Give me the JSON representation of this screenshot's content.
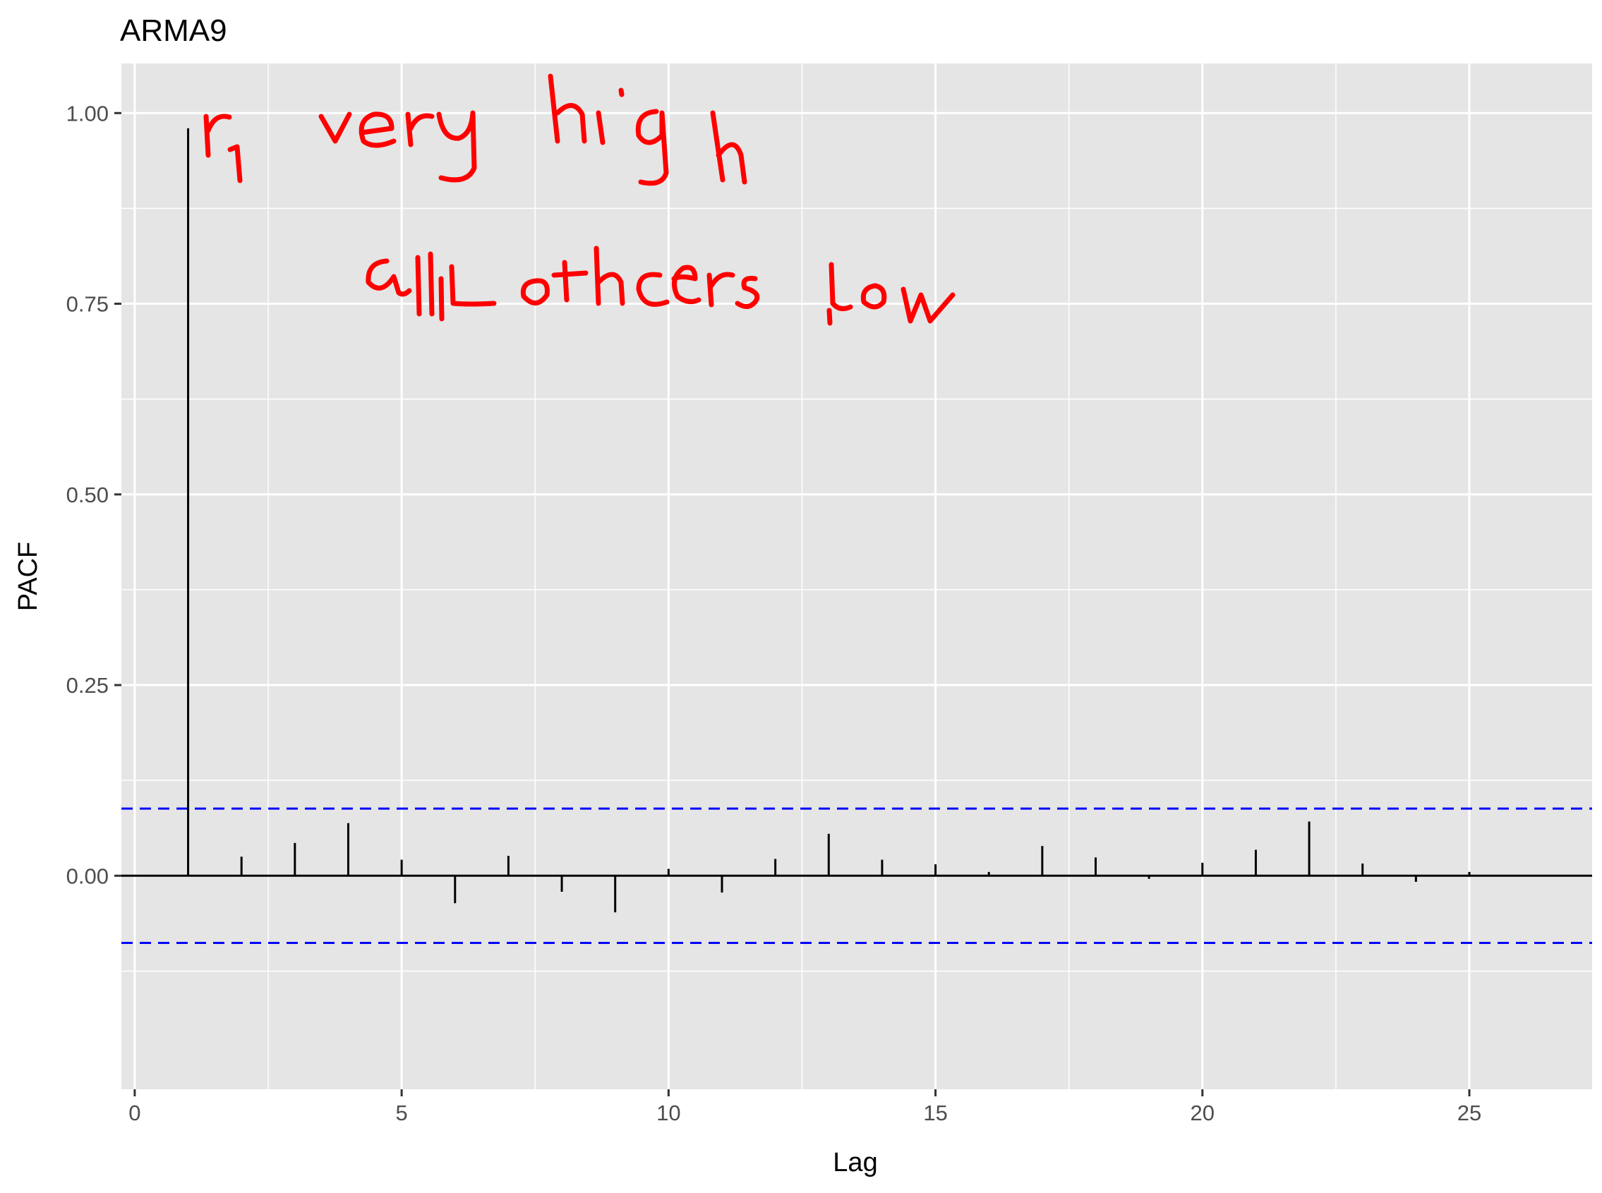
{
  "chart_data": {
    "type": "bar",
    "title": "ARMA9",
    "xlabel": "Lag",
    "ylabel": "PACF",
    "xlim": [
      -0.25,
      27.3
    ],
    "ylim": [
      -0.28,
      1.065
    ],
    "x_ticks": [
      0,
      5,
      10,
      15,
      20,
      25
    ],
    "x_tick_labels": [
      "0",
      "5",
      "10",
      "15",
      "20",
      "25"
    ],
    "y_ticks": [
      0,
      0.25,
      0.5,
      0.75,
      1.0
    ],
    "y_tick_labels": [
      "0.00",
      "0.25",
      "0.50",
      "0.75",
      "1.00"
    ],
    "grid": true,
    "series": [
      {
        "x": [
          1,
          2,
          3,
          4,
          5,
          6,
          7,
          8,
          9,
          10,
          11,
          12,
          13,
          14,
          15,
          16,
          17,
          18,
          19,
          20,
          21,
          22,
          23,
          24,
          25
        ],
        "values": [
          0.98,
          0.025,
          0.043,
          0.069,
          0.021,
          -0.036,
          0.026,
          -0.021,
          -0.048,
          0.009,
          -0.022,
          0.022,
          0.055,
          0.021,
          0.015,
          0.005,
          0.039,
          0.024,
          -0.004,
          0.017,
          0.034,
          0.071,
          0.016,
          -0.008,
          0.005
        ]
      }
    ],
    "confidence_bounds": [
      0.088,
      -0.088
    ],
    "colors": {
      "panel": "#e5e5e5",
      "grid": "#ffffff",
      "bars": "#000000",
      "bounds": "#0000ff",
      "annotation": "#ff0000"
    },
    "annotations": [
      "r1 very high",
      "all others low"
    ]
  }
}
